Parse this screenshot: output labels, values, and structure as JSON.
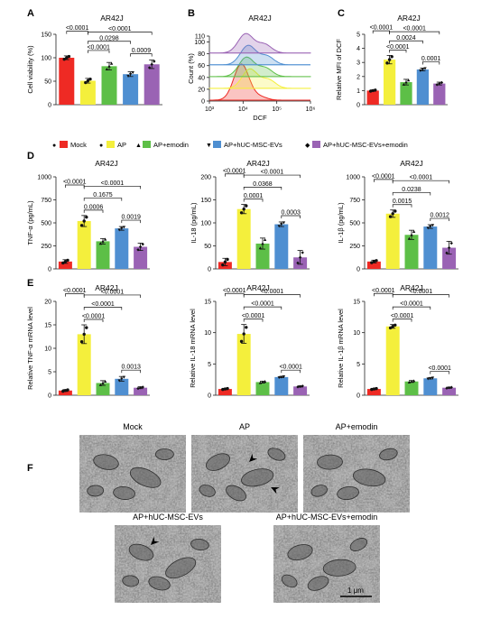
{
  "figure": {
    "legend": [
      {
        "label": "Mock",
        "color": "#ee2a24"
      },
      {
        "label": "AP",
        "color": "#f4ef3c"
      },
      {
        "label": "AP+emodin",
        "color": "#5dbf47"
      },
      {
        "label": "AP+hUC-MSC-EVs",
        "color": "#4f8fd1"
      },
      {
        "label": "AP+hUC-MSC-EVs+emodin",
        "color": "#9a63b4"
      }
    ],
    "legend_markers": [
      "●",
      "●",
      "▲",
      "▼",
      "◆"
    ],
    "flow": {
      "label": "B",
      "title": "AR42J",
      "ylabel": "Count (%)",
      "xlabel": "DCF",
      "yticks": [
        "0",
        "20",
        "40",
        "60",
        "80",
        "100",
        "110"
      ],
      "xticks": [
        "10³",
        "10⁴",
        "10⁵",
        "10⁶"
      ],
      "peak_decades": [
        3.95,
        4.2,
        4.1,
        4.15,
        4.08
      ],
      "curve_colors": [
        "#ee2a24",
        "#f4ef3c",
        "#5dbf47",
        "#4f8fd1",
        "#9a63b4"
      ]
    },
    "em_panel": {
      "label": "F",
      "images": [
        "Mock",
        "AP",
        "AP+emodin",
        "AP+hUC-MSC-EVs",
        "AP+hUC-MSC-EVs+emodin"
      ],
      "scale_bar": "1 μm",
      "arrow_icon": "arrowhead-icon"
    }
  },
  "chart_data": [
    {
      "type": "bar",
      "panel": "A",
      "title": "AR42J",
      "ylabel": "Cell viability (%)",
      "ylim": [
        0,
        150
      ],
      "yticks": [
        0,
        50,
        100,
        150
      ],
      "categories": [
        "Mock",
        "AP",
        "AP+emodin",
        "AP+hUC-MSC-EVs",
        "AP+hUC-MSC-EVs+emodin"
      ],
      "values": [
        100,
        51,
        82,
        65,
        86
      ],
      "errors": [
        4,
        5,
        8,
        5,
        9
      ],
      "pvalues": [
        [
          "<0.0001",
          0,
          1
        ],
        [
          "<0.0001",
          1,
          4
        ],
        [
          "0.0298",
          1,
          3
        ],
        [
          "<0.0001",
          1,
          2
        ],
        [
          "0.0009",
          3,
          4
        ]
      ]
    },
    {
      "type": "bar",
      "panel": "C",
      "title": "AR42J",
      "ylabel": "Relative MFI of DCF",
      "ylim": [
        0,
        5
      ],
      "yticks": [
        0,
        1,
        2,
        3,
        4,
        5
      ],
      "categories": [
        "Mock",
        "AP",
        "AP+emodin",
        "AP+hUC-MSC-EVs",
        "AP+hUC-MSC-EVs+emodin"
      ],
      "values": [
        1.0,
        3.2,
        1.6,
        2.5,
        1.5
      ],
      "errors": [
        0.05,
        0.3,
        0.2,
        0.1,
        0.1
      ],
      "pvalues": [
        [
          "<0.0001",
          0,
          1
        ],
        [
          "<0.0001",
          1,
          4
        ],
        [
          "0.0024",
          1,
          3
        ],
        [
          "<0.0001",
          1,
          2
        ],
        [
          "0.0001",
          3,
          4
        ]
      ]
    },
    {
      "type": "bar",
      "panel": "D",
      "title": "AR42J",
      "ylabel": "TNF-α (pg/mL)",
      "ylim": [
        0,
        1000
      ],
      "yticks": [
        0,
        250,
        500,
        750,
        1000
      ],
      "categories": [
        "Mock",
        "AP",
        "AP+emodin",
        "AP+hUC-MSC-EVs",
        "AP+hUC-MSC-EVs+emodin"
      ],
      "values": [
        80,
        520,
        300,
        440,
        240
      ],
      "errors": [
        20,
        60,
        30,
        20,
        40
      ],
      "pvalues": [
        [
          "<0.0001",
          0,
          1
        ],
        [
          "<0.0001",
          1,
          4
        ],
        [
          "0.1675",
          1,
          3
        ],
        [
          "0.0006",
          1,
          2
        ],
        [
          "0.0019",
          3,
          4
        ]
      ]
    },
    {
      "type": "bar",
      "panel": "D2",
      "title": "AR42J",
      "ylabel": "IL-18 (pg/mL)",
      "ylim": [
        0,
        200
      ],
      "yticks": [
        0,
        50,
        100,
        150,
        200
      ],
      "categories": [
        "Mock",
        "AP",
        "AP+emodin",
        "AP+hUC-MSC-EVs",
        "AP+hUC-MSC-EVs+emodin"
      ],
      "values": [
        15,
        130,
        55,
        97,
        25
      ],
      "errors": [
        8,
        10,
        12,
        5,
        15
      ],
      "pvalues": [
        [
          "<0.0001",
          0,
          1
        ],
        [
          "<0.0001",
          1,
          4
        ],
        [
          "0.0368",
          1,
          3
        ],
        [
          "0.0001",
          1,
          2
        ],
        [
          "0.0003",
          3,
          4
        ]
      ]
    },
    {
      "type": "bar",
      "panel": "D3",
      "title": "AR42J",
      "ylabel": "IL-1β (pg/mL)",
      "ylim": [
        0,
        1000
      ],
      "yticks": [
        0,
        250,
        500,
        750,
        1000
      ],
      "categories": [
        "Mock",
        "AP",
        "AP+emodin",
        "AP+hUC-MSC-EVs",
        "AP+hUC-MSC-EVs+emodin"
      ],
      "values": [
        80,
        600,
        370,
        460,
        230
      ],
      "errors": [
        15,
        40,
        50,
        20,
        70
      ],
      "pvalues": [
        [
          "<0.0001",
          0,
          1
        ],
        [
          "<0.0001",
          1,
          4
        ],
        [
          "0.0238",
          1,
          3
        ],
        [
          "0.0015",
          1,
          2
        ],
        [
          "0.0012",
          3,
          4
        ]
      ]
    },
    {
      "type": "bar",
      "panel": "E",
      "title": "AR42J",
      "ylabel": "Relative TNF-α mRNA level",
      "ylim": [
        0,
        20
      ],
      "yticks": [
        0,
        5,
        10,
        15,
        20
      ],
      "categories": [
        "Mock",
        "AP",
        "AP+emodin",
        "AP+hUC-MSC-EVs",
        "AP+hUC-MSC-EVs+emodin"
      ],
      "values": [
        1.0,
        13.0,
        2.6,
        3.5,
        1.6
      ],
      "errors": [
        0.2,
        2.0,
        0.5,
        0.5,
        0.2
      ],
      "pvalues": [
        [
          "<0.0001",
          0,
          1
        ],
        [
          "<0.0001",
          1,
          4
        ],
        [
          "<0.0001",
          1,
          3
        ],
        [
          "<0.0001",
          1,
          2
        ],
        [
          "0.0013",
          3,
          4
        ]
      ]
    },
    {
      "type": "bar",
      "panel": "E2",
      "title": "AR42J",
      "ylabel": "Relative IL-18 mRNA level",
      "ylim": [
        0,
        15
      ],
      "yticks": [
        0,
        5,
        10,
        15
      ],
      "categories": [
        "Mock",
        "AP",
        "AP+emodin",
        "AP+hUC-MSC-EVs",
        "AP+hUC-MSC-EVs+emodin"
      ],
      "values": [
        1.0,
        9.8,
        2.1,
        2.9,
        1.4
      ],
      "errors": [
        0.1,
        1.5,
        0.15,
        0.1,
        0.1
      ],
      "pvalues": [
        [
          "<0.0001",
          0,
          1
        ],
        [
          "<0.0001",
          1,
          4
        ],
        [
          "<0.0001",
          1,
          3
        ],
        [
          "<0.0001",
          1,
          2
        ],
        [
          "<0.0001",
          3,
          4
        ]
      ]
    },
    {
      "type": "bar",
      "panel": "E3",
      "title": "AR42J",
      "ylabel": "Relative IL-1β mRNA level",
      "ylim": [
        0,
        15
      ],
      "yticks": [
        0,
        5,
        10,
        15
      ],
      "categories": [
        "Mock",
        "AP",
        "AP+emodin",
        "AP+hUC-MSC-EVs",
        "AP+hUC-MSC-EVs+emodin"
      ],
      "values": [
        1.0,
        11.0,
        2.2,
        2.7,
        1.2
      ],
      "errors": [
        0.1,
        0.3,
        0.15,
        0.1,
        0.1
      ],
      "pvalues": [
        [
          "<0.0001",
          0,
          1
        ],
        [
          "<0.0001",
          1,
          4
        ],
        [
          "<0.0001",
          1,
          3
        ],
        [
          "<0.0001",
          1,
          2
        ],
        [
          "<0.0001",
          3,
          4
        ]
      ]
    }
  ]
}
